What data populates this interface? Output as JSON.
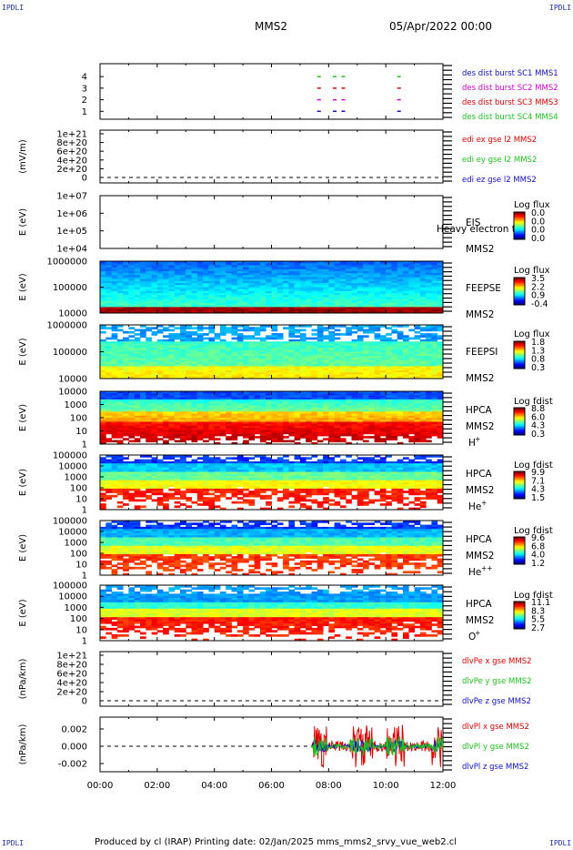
{
  "corner_label": "IPDLI",
  "header": {
    "title": "MMS2",
    "date": "05/Apr/2022 00:00"
  },
  "footer": {
    "text": "Produced by cl (IRAP)   Printing date: 02/Jan/2025   mms_mms2_srvy_vue_web2.cl"
  },
  "colors": {
    "blue": "#1010c8",
    "red": "#e00000",
    "magenta": "#d000d0",
    "green": "#20c020"
  },
  "chart_data": [
    {
      "type": "line",
      "id": "burst",
      "yticks": [
        "1",
        "2",
        "3",
        "4"
      ],
      "legend": [
        {
          "name": "des dist burst SC1 MMS1",
          "color": "#1010c8"
        },
        {
          "name": "des dist burst SC2 MMS2",
          "color": "#d000d0"
        },
        {
          "name": "des dist burst SC3 MMS3",
          "color": "#e00000"
        },
        {
          "name": "des dist burst SC4 MMS4",
          "color": "#20c020"
        }
      ],
      "burst_times_h": [
        7.6,
        8.15,
        8.45,
        10.4
      ]
    },
    {
      "type": "line",
      "id": "edi",
      "ylabel": "(mV/m)",
      "yticks": [
        "1e+21",
        "8e+20",
        "6e+20",
        "4e+20",
        "2e+20",
        "0"
      ],
      "legend": [
        {
          "name": "edi ex gse l2 MMS2",
          "color": "#e00000"
        },
        {
          "name": "edi ey gse l2 MMS2",
          "color": "#20c020"
        },
        {
          "name": "edi ez gse l2 MMS2",
          "color": "#1010c8"
        }
      ]
    },
    {
      "type": "heatmap",
      "id": "eis",
      "ylabel": "E (eV)",
      "yticks": [
        "1e+07",
        "1e+06",
        "1e+05",
        "1e+04"
      ],
      "labels": [
        "EIS",
        "MMS2"
      ],
      "overlay": "Heavy electron tc",
      "cbar_title": "Log flux",
      "cbar_ticks": [
        "0.0",
        "0.0",
        "0.0",
        "0.0"
      ]
    },
    {
      "type": "heatmap",
      "id": "feepse",
      "ylabel": "E (eV)",
      "yticks": [
        "1000000",
        "100000",
        "10000"
      ],
      "labels": [
        "FEEPSE",
        "MMS2"
      ],
      "cbar_title": "Log flux",
      "cbar_ticks": [
        "3.5",
        "2.2",
        "0.9",
        "-0.4"
      ]
    },
    {
      "type": "heatmap",
      "id": "feepsi",
      "ylabel": "E (eV)",
      "yticks": [
        "1000000",
        "100000",
        "10000"
      ],
      "labels": [
        "FEEPSI",
        "MMS2"
      ],
      "cbar_title": "Log flux",
      "cbar_ticks": [
        "1.8",
        "1.3",
        "0.8",
        "0.3"
      ]
    },
    {
      "type": "heatmap",
      "id": "hpca_h",
      "ylabel": "E (eV)",
      "yticks": [
        "10000",
        "1000",
        "100",
        "10",
        "1"
      ],
      "labels": [
        "HPCA",
        "MMS2"
      ],
      "species": "H",
      "charge": "+",
      "cbar_title": "Log fdist",
      "cbar_ticks": [
        "8.8",
        "6.0",
        "4.3",
        "0.3"
      ]
    },
    {
      "type": "heatmap",
      "id": "hpca_he",
      "ylabel": "E (eV)",
      "yticks": [
        "100000",
        "10000",
        "1000",
        "100",
        "10",
        "1"
      ],
      "labels": [
        "HPCA",
        "MMS2"
      ],
      "species": "He",
      "charge": "+",
      "cbar_title": "Log fdist",
      "cbar_ticks": [
        "9.9",
        "7.1",
        "4.3",
        "1.5"
      ]
    },
    {
      "type": "heatmap",
      "id": "hpca_hepp",
      "ylabel": "E (eV)",
      "yticks": [
        "100000",
        "10000",
        "1000",
        "100",
        "10",
        "1"
      ],
      "labels": [
        "HPCA",
        "MMS2"
      ],
      "species": "He",
      "charge": "++",
      "cbar_title": "Log fdist",
      "cbar_ticks": [
        "9.6",
        "6.8",
        "4.0",
        "1.2"
      ]
    },
    {
      "type": "heatmap",
      "id": "hpca_o",
      "ylabel": "E (eV)",
      "yticks": [
        "100000",
        "10000",
        "1000",
        "100",
        "10",
        "1"
      ],
      "labels": [
        "HPCA",
        "MMS2"
      ],
      "species": "O",
      "charge": "+",
      "cbar_title": "Log fdist",
      "cbar_ticks": [
        "11.1",
        "8.3",
        "5.5",
        "2.7"
      ]
    },
    {
      "type": "line",
      "id": "divpe",
      "ylabel": "(nPa/km)",
      "yticks": [
        "1e+21",
        "8e+20",
        "6e+20",
        "4e+20",
        "2e+20",
        "0"
      ],
      "legend": [
        {
          "name": "dlvPe x gse MMS2",
          "color": "#e00000"
        },
        {
          "name": "dlvPe y gse MMS2",
          "color": "#20c020"
        },
        {
          "name": "dlvPe z gse MMS2",
          "color": "#1010c8"
        }
      ]
    },
    {
      "type": "line",
      "id": "divpi",
      "ylabel": "(nPa/km)",
      "yticks": [
        "0.002",
        "0.000",
        "-0.002"
      ],
      "ylim": [
        -0.003,
        0.003
      ],
      "xticks": [
        "00:00",
        "02:00",
        "04:00",
        "06:00",
        "08:00",
        "10:00",
        "12:00"
      ],
      "xlim_h": [
        0,
        12
      ],
      "data_start_h": 7.4,
      "legend": [
        {
          "name": "dlvPl x gse MMS2",
          "color": "#e00000"
        },
        {
          "name": "dlvPl y gse MMS2",
          "color": "#20c020"
        },
        {
          "name": "dlvPl z gse MMS2",
          "color": "#1010c8"
        }
      ]
    }
  ]
}
